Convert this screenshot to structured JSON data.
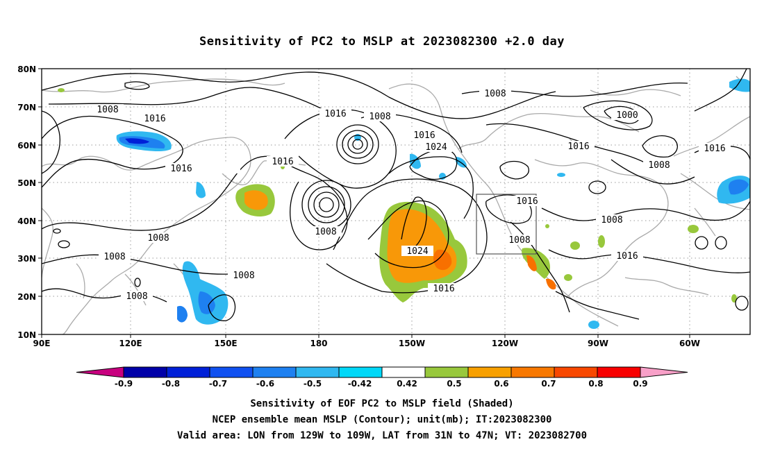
{
  "title": "Sensitivity of PC2 to MSLP at 2023082300 +2.0 day",
  "axes": {
    "lat_labels": [
      "80N",
      "70N",
      "60N",
      "50N",
      "40N",
      "30N",
      "20N",
      "10N"
    ],
    "lon_labels": [
      "90E",
      "120E",
      "150E",
      "180",
      "150W",
      "120W",
      "90W",
      "60W"
    ]
  },
  "contour_labels": [
    "1008",
    "1016",
    "1016",
    "1008",
    "1016",
    "1008",
    "1016",
    "1024",
    "1000",
    "1016",
    "1008",
    "1016",
    "1016",
    "1016",
    "1008",
    "1008",
    "1008",
    "1008",
    "1024",
    "1016",
    "1016",
    "1008",
    "1016",
    "1008",
    "1008"
  ],
  "colorbar": {
    "labels": [
      "-0.9",
      "-0.8",
      "-0.7",
      "-0.6",
      "-0.5",
      "-0.42",
      "0.42",
      "0.5",
      "0.6",
      "0.7",
      "0.8",
      "0.9"
    ],
    "colors": [
      "#c8007f",
      "#0000a8",
      "#0020d8",
      "#1050f0",
      "#1e80f0",
      "#30b8f0",
      "#00d8f8",
      "#ffffff",
      "#98c83c",
      "#f8a000",
      "#f87800",
      "#f84800",
      "#f80000",
      "#f8a0c8"
    ]
  },
  "shading_colors": {
    "green": "#98c83c",
    "orange": "#f89808",
    "dark_orange": "#f87000",
    "red_orange": "#f84800",
    "light_blue": "#30b8f0",
    "mid_blue": "#1e80f0",
    "dark_blue": "#0020d8",
    "coast": "#aaaaaa"
  },
  "captions": {
    "line1": "Sensitivity of EOF PC2 to MSLP field (Shaded)",
    "line2": "NCEP ensemble mean MSLP (Contour); unit(mb); IT:2023082300",
    "line3": "Valid area: LON from 129W to 109W, LAT from 31N to 47N; VT: 2023082700"
  }
}
